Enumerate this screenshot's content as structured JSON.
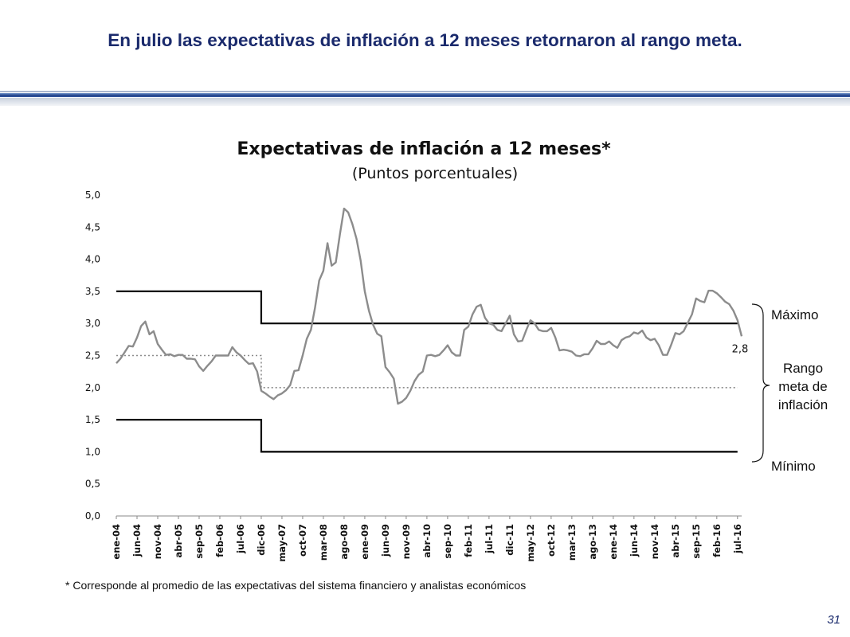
{
  "slide": {
    "title": "En julio las expectativas de inflación a 12 meses retornaron al rango meta.",
    "footnote": "* Corresponde al promedio de las expectativas del sistema financiero y analistas económicos",
    "page_number": "31"
  },
  "side_labels": {
    "max": "Máximo",
    "range_line1": "Rango",
    "range_line2": "meta de",
    "range_line3": "inflación",
    "min": "Mínimo"
  },
  "colors": {
    "title": "#1a2a6c",
    "series": "#8c8c8c",
    "band": "#000000",
    "target": "#8c8c8c"
  },
  "chart_data": {
    "type": "line",
    "title": "Expectativas de inflación a 12 meses*",
    "subtitle": "(Puntos porcentuales)",
    "xlabel": "",
    "ylabel": "",
    "ylim": [
      0,
      5
    ],
    "yticks": [
      "0,0",
      "0,5",
      "1,0",
      "1,5",
      "2,0",
      "2,5",
      "3,0",
      "3,5",
      "4,0",
      "4,5",
      "5,0"
    ],
    "x_tick_labels": [
      "ene-04",
      "jun-04",
      "nov-04",
      "abr-05",
      "sep-05",
      "feb-06",
      "jul-06",
      "dic-06",
      "may-07",
      "oct-07",
      "mar-08",
      "ago-08",
      "ene-09",
      "jun-09",
      "nov-09",
      "abr-10",
      "sep-10",
      "feb-11",
      "jul-11",
      "dic-11",
      "may-12",
      "oct-12",
      "mar-13",
      "ago-13",
      "ene-14",
      "jun-14",
      "nov-14",
      "abr-15",
      "sep-15",
      "feb-16",
      "jul-16"
    ],
    "start_label": "ene-04",
    "end_label": "jul-16",
    "legend": "none",
    "grid": false,
    "end_label_value": "2,8",
    "series": [
      {
        "values": [
          2.38,
          2.45,
          2.55,
          2.65,
          2.64,
          2.78,
          2.96,
          3.03,
          2.83,
          2.88,
          2.68,
          2.59,
          2.51,
          2.52,
          2.49,
          2.51,
          2.51,
          2.45,
          2.45,
          2.44,
          2.33,
          2.26,
          2.34,
          2.41,
          2.5,
          2.5,
          2.5,
          2.5,
          2.63,
          2.55,
          2.5,
          2.43,
          2.37,
          2.38,
          2.25,
          1.95,
          1.91,
          1.86,
          1.82,
          1.88,
          1.91,
          1.96,
          2.04,
          2.26,
          2.27,
          2.5,
          2.76,
          2.9,
          3.25,
          3.67,
          3.82,
          4.25,
          3.9,
          3.95,
          4.39,
          4.79,
          4.73,
          4.55,
          4.32,
          3.98,
          3.5,
          3.2,
          2.98,
          2.84,
          2.8,
          2.32,
          2.24,
          2.14,
          1.75,
          1.78,
          1.84,
          1.95,
          2.1,
          2.2,
          2.25,
          2.5,
          2.51,
          2.49,
          2.51,
          2.58,
          2.66,
          2.55,
          2.5,
          2.5,
          2.9,
          2.95,
          3.14,
          3.26,
          3.29,
          3.09,
          3.0,
          2.98,
          2.9,
          2.88,
          3.0,
          3.12,
          2.83,
          2.72,
          2.73,
          2.9,
          3.05,
          3.0,
          2.9,
          2.88,
          2.88,
          2.93,
          2.78,
          2.58,
          2.59,
          2.58,
          2.56,
          2.5,
          2.49,
          2.52,
          2.52,
          2.61,
          2.73,
          2.68,
          2.68,
          2.72,
          2.66,
          2.62,
          2.74,
          2.78,
          2.8,
          2.86,
          2.84,
          2.89,
          2.78,
          2.74,
          2.76,
          2.66,
          2.51,
          2.51,
          2.67,
          2.85,
          2.83,
          2.88,
          3.01,
          3.14,
          3.39,
          3.35,
          3.33,
          3.51,
          3.51,
          3.47,
          3.41,
          3.34,
          3.3,
          3.2,
          3.05,
          2.8
        ]
      }
    ],
    "target_range_upper": {
      "segments": [
        {
          "from": "ene-04",
          "to": "dic-06",
          "value": 3.5
        },
        {
          "from": "dic-06",
          "to": "jul-16",
          "value": 3.0
        }
      ]
    },
    "target_range_lower": {
      "segments": [
        {
          "from": "ene-04",
          "to": "dic-06",
          "value": 1.5
        },
        {
          "from": "dic-06",
          "to": "jul-16",
          "value": 1.0
        }
      ]
    },
    "target_midpoint": {
      "segments": [
        {
          "from": "ene-04",
          "to": "dic-06",
          "value": 2.5
        },
        {
          "from": "dic-06",
          "to": "jul-16",
          "value": 2.0
        }
      ]
    }
  }
}
